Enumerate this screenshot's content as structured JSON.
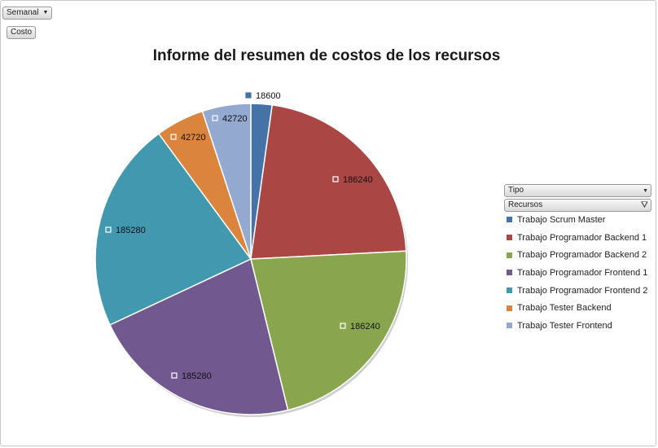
{
  "controls": {
    "period_label": "Semanal",
    "value_label": "Costo",
    "tipo_label": "Tipo",
    "recursos_label": "Recursos"
  },
  "chart_data": {
    "type": "pie",
    "title": "Informe del resumen de costos de los recursos",
    "categories": [
      "Trabajo Scrum Master",
      "Trabajo Programador Backend 1",
      "Trabajo Programador Backend 2",
      "Trabajo Programador Frontend 1",
      "Trabajo Programador Frontend 2",
      "Trabajo Tester Backend",
      "Trabajo Tester Frontend"
    ],
    "values": [
      18600,
      186240,
      186240,
      185280,
      185280,
      42720,
      42720
    ],
    "data_labels": [
      "18600",
      "186240",
      "186240",
      "185280",
      "185280",
      "42720",
      "42720"
    ],
    "colors": [
      "#4572a7",
      "#aa4643",
      "#89a54e",
      "#71588f",
      "#4198af",
      "#db843d",
      "#93a9cf"
    ],
    "legend_position": "right"
  }
}
